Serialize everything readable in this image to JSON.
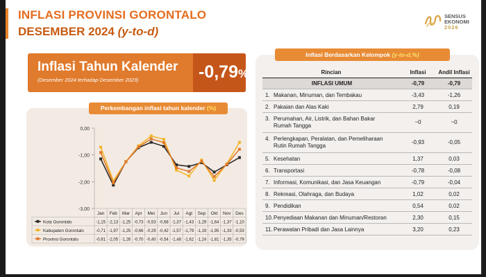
{
  "header": {
    "title_line1": "INFLASI PROVINSI GORONTALO",
    "title_line2_main": "DESEMBER 2024",
    "title_line2_ytd": "(y-to-d)",
    "logo_line1": "SENSUS",
    "logo_line2": "EKONOMI",
    "logo_year": "2026"
  },
  "headline": {
    "label": "Inflasi Tahun Kalender",
    "sub": "(Desember 2024 terhadap Desember 2023)",
    "value": "-0,79",
    "unit": "%"
  },
  "chart_panel": {
    "title": "Perkembangan inflasi tahun kalender",
    "title_unit": "(%)"
  },
  "chart_data": {
    "type": "line",
    "categories": [
      "Jan",
      "Feb",
      "Mar",
      "Apr",
      "Mei",
      "Jun",
      "Jul",
      "Agt",
      "Sep",
      "Okt",
      "Nov",
      "Des"
    ],
    "ylim": [
      -3.0,
      0.0
    ],
    "yticks": [
      "0,00",
      "-1,00",
      "-2,00",
      "-3,00"
    ],
    "series": [
      {
        "name": "Kota Gorontalo",
        "color": "#2b2b2b",
        "values": [
          -1.15,
          -2.13,
          -1.25,
          -0.73,
          -0.53,
          -0.68,
          -1.37,
          -1.43,
          -1.29,
          -1.64,
          -1.37,
          -1.1
        ],
        "labels": [
          "-1,15",
          "-2,13",
          "-1,25",
          "-0,73",
          "-0,53",
          "-0,68",
          "-1,37",
          "-1,43",
          "-1,29",
          "-1,64",
          "-1,37",
          "-1,10"
        ]
      },
      {
        "name": "Kabupaten Gorontalo",
        "color": "#f2b52b",
        "values": [
          -0.71,
          -1.97,
          -1.25,
          -0.66,
          -0.29,
          -0.42,
          -1.57,
          -1.79,
          -1.19,
          -1.95,
          -1.33,
          -0.53
        ],
        "labels": [
          "-0,71",
          "-1,97",
          "-1,25",
          "-0,66",
          "-0,29",
          "-0,42",
          "-1,57",
          "-1,79",
          "-1,19",
          "-1,95",
          "-1,33",
          "-0,53"
        ]
      },
      {
        "name": "Provinsi Gorontalo",
        "color": "#e07a2c",
        "values": [
          -0.91,
          -2.05,
          -1.26,
          -0.7,
          -0.4,
          -0.54,
          -1.48,
          -1.62,
          -1.24,
          -1.81,
          -1.35,
          -0.79
        ],
        "labels": [
          "-0,91",
          "-2,05",
          "-1,26",
          "-0,70",
          "-0,40",
          "-0,54",
          "-1,48",
          "-1,62",
          "-1,24",
          "-1,81",
          "-1,35",
          "-0,79"
        ]
      }
    ]
  },
  "table": {
    "title_main": "Inflasi Berdasarkan Kelompok",
    "title_ytd": "(y-to-d,%)",
    "headers": [
      "Rincian",
      "Inflasi",
      "Andil Inflasi"
    ],
    "umum": {
      "name": "INFLASI UMUM",
      "inflasi": "-0,79",
      "andil": "-0,79"
    },
    "rows": [
      {
        "no": "1.",
        "name": "Makanan, Minuman, dan Tembakau",
        "cont": "",
        "inflasi": "-3,43",
        "andil": "-1,26"
      },
      {
        "no": "2.",
        "name": "Pakaian dan Alas Kaki",
        "cont": "",
        "inflasi": "2,79",
        "andil": "0,19"
      },
      {
        "no": "3.",
        "name": "Perumahan, Air, Listrik, dan Bahan Bakar",
        "cont": "Rumah Tangga",
        "inflasi": "~0",
        "andil": "~0"
      },
      {
        "no": "4.",
        "name": "Perlengkapan, Peralatan, dan Pemeliharaan",
        "cont": "Rutin Rumah Tangga",
        "inflasi": "-0,93",
        "andil": "-0,05"
      },
      {
        "no": "5.",
        "name": "Kesehatan",
        "cont": "",
        "inflasi": "1,37",
        "andil": "0,03"
      },
      {
        "no": "6.",
        "name": "Transportasi",
        "cont": "",
        "inflasi": "-0,78",
        "andil": "-0,08"
      },
      {
        "no": "7.",
        "name": "Informasi, Komunikasi, dan Jasa Keuangan",
        "cont": "",
        "inflasi": "-0,79",
        "andil": "-0,04"
      },
      {
        "no": "8.",
        "name": "Rekreasi, Olahraga, dan Budaya",
        "cont": "",
        "inflasi": "1,02",
        "andil": "0,02"
      },
      {
        "no": "9.",
        "name": "Pendidikan",
        "cont": "",
        "inflasi": "0,54",
        "andil": "0,02"
      },
      {
        "no": "10.",
        "name": "Penyediaan Makanan dan Minuman/Restoran",
        "cont": "",
        "inflasi": "2,30",
        "andil": "0,15"
      },
      {
        "no": "11.",
        "name": "Perawatan Pribadi dan Jasa Lainnya",
        "cont": "",
        "inflasi": "3,20",
        "andil": "0,23"
      }
    ]
  }
}
